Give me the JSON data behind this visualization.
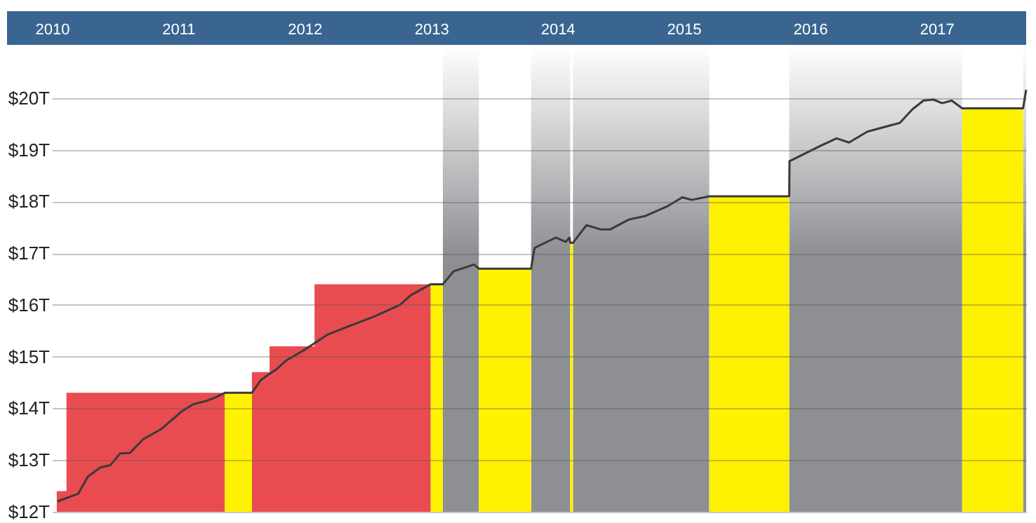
{
  "chart_data": {
    "type": "line",
    "xlim": [
      "2010-01-01",
      "2017-09-17"
    ],
    "xticks": [
      {
        "value": "2010-01-01",
        "label": "2010"
      },
      {
        "value": "2011-01-01",
        "label": "2011"
      },
      {
        "value": "2012-01-01",
        "label": "2012"
      },
      {
        "value": "2013-01-01",
        "label": "2013"
      },
      {
        "value": "2014-01-01",
        "label": "2014"
      },
      {
        "value": "2015-01-01",
        "label": "2015"
      },
      {
        "value": "2016-01-01",
        "label": "2016"
      },
      {
        "value": "2017-01-01",
        "label": "2017"
      }
    ],
    "ylim": [
      12,
      21
    ],
    "yticks": [
      {
        "value": 12,
        "label": "$12T"
      },
      {
        "value": 13,
        "label": "$13T"
      },
      {
        "value": 14,
        "label": "$14T"
      },
      {
        "value": 15,
        "label": "$15T"
      },
      {
        "value": 16,
        "label": "$16T"
      },
      {
        "value": 17,
        "label": "$17T"
      },
      {
        "value": 18,
        "label": "$18T"
      },
      {
        "value": 19,
        "label": "$19T"
      },
      {
        "value": 20,
        "label": "$20T"
      }
    ],
    "grid": "y",
    "bands": [
      {
        "axis": "x",
        "from": "2013-02-04",
        "to": "2013-05-19",
        "color": "#8e8f93"
      },
      {
        "axis": "x",
        "from": "2013-10-17",
        "to": "2014-02-07",
        "color": "#8e8f93"
      },
      {
        "axis": "x",
        "from": "2014-02-15",
        "to": "2015-03-16",
        "color": "#8e8f93"
      },
      {
        "axis": "x",
        "from": "2015-11-02",
        "to": "2017-03-16",
        "color": "#8e8f93"
      },
      {
        "axis": "x",
        "from": "2017-09-08",
        "to": "2017-09-17",
        "color": "#8e8f93"
      }
    ],
    "series": [
      {
        "type": "area",
        "color": "#e84c50",
        "x": [
          "2010-01-15",
          "2010-02-12",
          "2010-02-12",
          "2011-05-16",
          "2011-05-16",
          "2011-08-02",
          "2011-08-02",
          "2011-09-22",
          "2011-09-22",
          "2012-01-30",
          "2012-01-30",
          "2012-12-31"
        ],
        "values": [
          12.4,
          12.4,
          14.3,
          14.3,
          12,
          12,
          14.7,
          14.7,
          15.2,
          15.2,
          16.4,
          16.4
        ]
      },
      {
        "type": "area",
        "color": "#fff200",
        "x": [
          "2011-05-16",
          "2011-08-02",
          "2011-08-02",
          "2012-12-31",
          "2012-12-31",
          "2013-02-04",
          "2013-02-04",
          "2013-05-19",
          "2013-05-19",
          "2013-10-17",
          "2013-10-17",
          "2014-02-07",
          "2014-02-07",
          "2014-02-15",
          "2014-02-15",
          "2015-03-16",
          "2015-03-16",
          "2015-11-02",
          "2015-11-02",
          "2017-03-16",
          "2017-03-16",
          "2017-09-08"
        ],
        "values": [
          14.3,
          14.3,
          12,
          12,
          16.4,
          16.4,
          12,
          12,
          16.7,
          16.7,
          12,
          12,
          17.2,
          17.2,
          12,
          12,
          18.1,
          18.1,
          12,
          12,
          19.8,
          19.8
        ]
      },
      {
        "type": "line",
        "color": "#3a3a3a",
        "x": [
          "2010-01-17",
          "2010-03-18",
          "2010-04-15",
          "2010-05-22",
          "2010-06-19",
          "2010-07-17",
          "2010-08-15",
          "2010-09-21",
          "2010-11-13",
          "2011-01-13",
          "2011-02-14",
          "2011-03-22",
          "2011-04-15",
          "2011-05-16",
          "2011-08-02",
          "2011-08-27",
          "2011-09-12",
          "2011-10-11",
          "2011-11-08",
          "2012-01-01",
          "2012-03-06",
          "2012-05-01",
          "2012-07-22",
          "2012-10-03",
          "2012-11-04",
          "2012-12-31",
          "2013-02-04",
          "2013-03-07",
          "2013-05-05",
          "2013-05-19",
          "2013-10-17",
          "2013-10-27",
          "2013-12-27",
          "2014-01-25",
          "2014-02-05",
          "2014-02-07",
          "2014-02-15",
          "2014-03-26",
          "2014-05-06",
          "2014-06-03",
          "2014-07-27",
          "2014-09-13",
          "2014-11-13",
          "2014-12-28",
          "2015-01-25",
          "2015-03-16",
          "2015-11-02",
          "2015-11-03",
          "2016-02-02",
          "2016-03-18",
          "2016-04-23",
          "2016-06-15",
          "2016-09-17",
          "2016-10-23",
          "2016-11-24",
          "2016-12-23",
          "2017-01-17",
          "2017-02-14",
          "2017-03-16",
          "2017-09-08",
          "2017-09-17"
        ],
        "values": [
          12.2,
          12.35,
          12.68,
          12.86,
          12.9,
          13.13,
          13.14,
          13.4,
          13.6,
          13.95,
          14.08,
          14.14,
          14.2,
          14.3,
          14.3,
          14.54,
          14.62,
          14.75,
          14.92,
          15.13,
          15.42,
          15.57,
          15.78,
          16.0,
          16.19,
          16.4,
          16.4,
          16.65,
          16.78,
          16.7,
          16.7,
          17.1,
          17.3,
          17.22,
          17.3,
          17.2,
          17.2,
          17.54,
          17.46,
          17.46,
          17.65,
          17.72,
          17.9,
          18.08,
          18.03,
          18.1,
          18.1,
          18.78,
          19.08,
          19.22,
          19.14,
          19.35,
          19.52,
          19.78,
          19.95,
          19.97,
          19.9,
          19.95,
          19.8,
          19.8,
          20.16
        ]
      }
    ]
  }
}
